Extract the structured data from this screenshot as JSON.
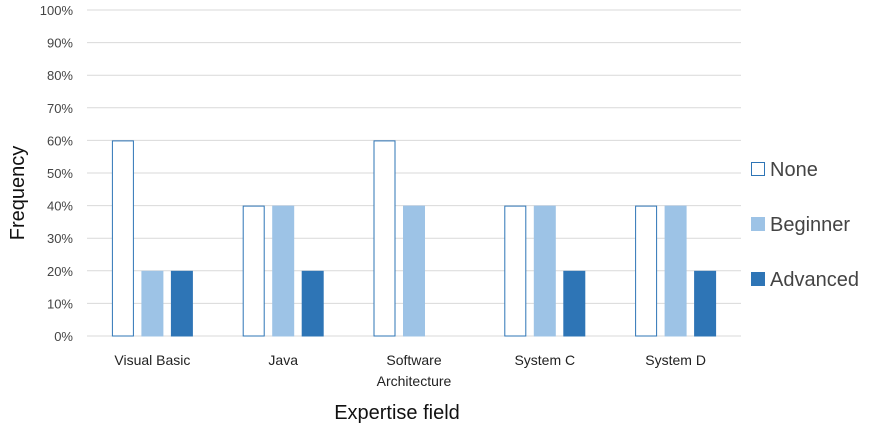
{
  "chart_data": {
    "type": "bar",
    "title": "",
    "xlabel": "Expertise field",
    "ylabel": "Frequency",
    "ylim": [
      0,
      100
    ],
    "yticks": [
      0,
      10,
      20,
      30,
      40,
      50,
      60,
      70,
      80,
      90,
      100
    ],
    "ytick_suffix": "%",
    "grid": true,
    "legend_position": "right",
    "categories": [
      [
        "Visual Basic"
      ],
      [
        "Java"
      ],
      [
        "Software",
        "Architecture"
      ],
      [
        "System C"
      ],
      [
        "System D"
      ]
    ],
    "series": [
      {
        "name": "None",
        "values": [
          60,
          40,
          60,
          40,
          40
        ],
        "fill": "#ffffff",
        "stroke": "#2e75b6"
      },
      {
        "name": "Beginner",
        "values": [
          20,
          40,
          40,
          40,
          40
        ],
        "fill": "#9dc3e6",
        "stroke": "#9dc3e6"
      },
      {
        "name": "Advanced",
        "values": [
          20,
          20,
          0,
          20,
          20
        ],
        "fill": "#2e75b6",
        "stroke": "#2e75b6"
      }
    ],
    "gridline_color": "#d9d9d9"
  }
}
